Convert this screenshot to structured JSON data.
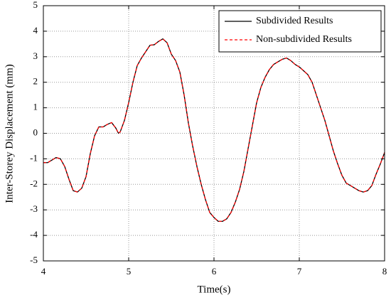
{
  "chart_data": {
    "type": "line",
    "x_label": "Time(s)",
    "y_label": "Inter-Storey Displacement (mm)",
    "x": [
      4.0,
      4.05,
      4.1,
      4.15,
      4.2,
      4.25,
      4.3,
      4.35,
      4.4,
      4.45,
      4.5,
      4.55,
      4.6,
      4.65,
      4.7,
      4.75,
      4.8,
      4.85,
      4.88,
      4.9,
      4.95,
      5.0,
      5.05,
      5.1,
      5.15,
      5.2,
      5.25,
      5.3,
      5.35,
      5.4,
      5.45,
      5.5,
      5.55,
      5.6,
      5.65,
      5.7,
      5.75,
      5.8,
      5.85,
      5.9,
      5.95,
      6.0,
      6.05,
      6.1,
      6.15,
      6.2,
      6.25,
      6.3,
      6.35,
      6.4,
      6.45,
      6.5,
      6.55,
      6.6,
      6.65,
      6.7,
      6.75,
      6.8,
      6.85,
      6.9,
      6.95,
      7.0,
      7.05,
      7.1,
      7.15,
      7.2,
      7.25,
      7.3,
      7.35,
      7.4,
      7.45,
      7.5,
      7.55,
      7.6,
      7.65,
      7.7,
      7.75,
      7.8,
      7.85,
      7.9,
      7.95,
      8.0
    ],
    "series": [
      {
        "name": "Subdivided Results",
        "color": "#000000",
        "dash": false,
        "values": [
          -1.15,
          -1.15,
          -1.05,
          -0.95,
          -1.0,
          -1.3,
          -1.8,
          -2.25,
          -2.3,
          -2.15,
          -1.7,
          -0.8,
          -0.1,
          0.25,
          0.25,
          0.35,
          0.42,
          0.2,
          0.0,
          0.05,
          0.5,
          1.2,
          2.0,
          2.65,
          2.95,
          3.2,
          3.45,
          3.47,
          3.6,
          3.7,
          3.55,
          3.1,
          2.85,
          2.4,
          1.5,
          0.4,
          -0.5,
          -1.3,
          -2.0,
          -2.6,
          -3.1,
          -3.3,
          -3.45,
          -3.45,
          -3.35,
          -3.1,
          -2.7,
          -2.2,
          -1.5,
          -0.6,
          0.3,
          1.2,
          1.8,
          2.2,
          2.5,
          2.7,
          2.8,
          2.9,
          2.95,
          2.85,
          2.7,
          2.6,
          2.45,
          2.3,
          2.0,
          1.5,
          1.0,
          0.5,
          -0.1,
          -0.7,
          -1.2,
          -1.65,
          -1.95,
          -2.05,
          -2.15,
          -2.25,
          -2.3,
          -2.25,
          -2.05,
          -1.6,
          -1.2,
          -0.75
        ]
      },
      {
        "name": "Non-subdivided Results",
        "color": "#ff0000",
        "dash": true,
        "values": [
          -1.15,
          -1.15,
          -1.05,
          -0.95,
          -1.0,
          -1.3,
          -1.8,
          -2.25,
          -2.3,
          -2.15,
          -1.7,
          -0.8,
          -0.1,
          0.25,
          0.25,
          0.35,
          0.42,
          0.2,
          0.0,
          0.05,
          0.5,
          1.2,
          2.0,
          2.65,
          2.95,
          3.2,
          3.45,
          3.47,
          3.6,
          3.7,
          3.55,
          3.1,
          2.85,
          2.4,
          1.5,
          0.4,
          -0.5,
          -1.3,
          -2.0,
          -2.6,
          -3.1,
          -3.3,
          -3.45,
          -3.45,
          -3.35,
          -3.1,
          -2.7,
          -2.2,
          -1.5,
          -0.6,
          0.3,
          1.2,
          1.8,
          2.2,
          2.5,
          2.7,
          2.8,
          2.9,
          2.95,
          2.85,
          2.7,
          2.6,
          2.45,
          2.3,
          2.0,
          1.5,
          1.0,
          0.5,
          -0.1,
          -0.7,
          -1.2,
          -1.65,
          -1.95,
          -2.05,
          -2.15,
          -2.25,
          -2.3,
          -2.25,
          -2.05,
          -1.6,
          -1.2,
          -0.75
        ]
      }
    ],
    "xlim": [
      4,
      8
    ],
    "xticks": [
      4,
      5,
      6,
      7,
      8
    ],
    "ylim": [
      -5,
      5
    ],
    "yticks": [
      -5,
      -4,
      -3,
      -2,
      -1,
      0,
      1,
      2,
      3,
      4,
      5
    ],
    "grid": true,
    "legend": "upper right"
  }
}
